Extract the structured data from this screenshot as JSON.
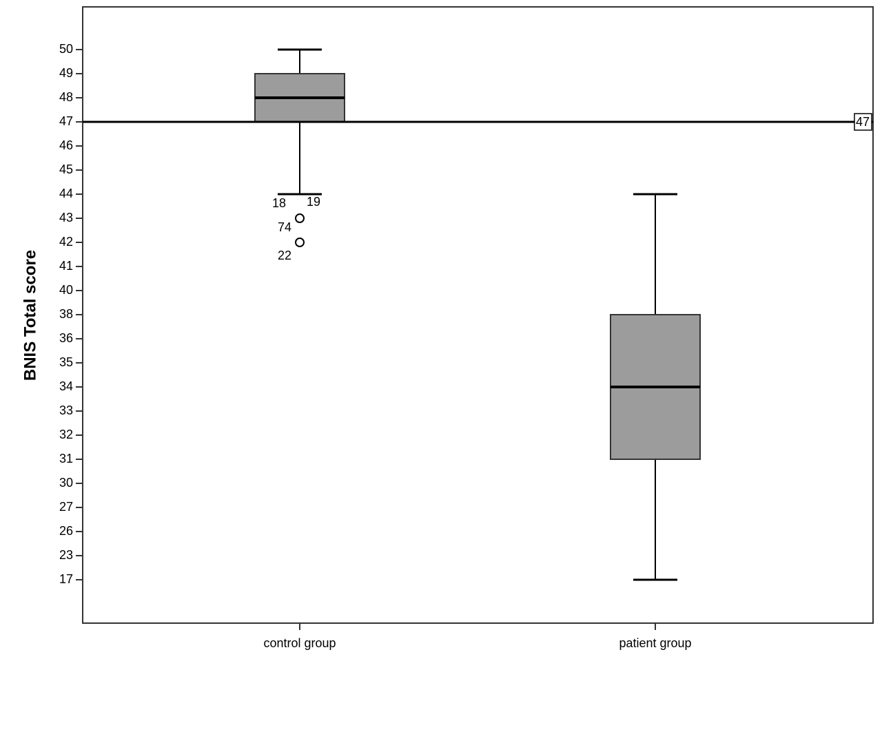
{
  "chart_data": {
    "type": "box",
    "y_label": "BNIS Total score",
    "categories": [
      "control group",
      "patient group"
    ],
    "boxes": [
      {
        "min": 44,
        "q1": 47,
        "median": 48,
        "q3": 49,
        "max": 50,
        "outliers": [
          {
            "value": 44,
            "label": "18"
          },
          {
            "value": 44,
            "label": "19"
          },
          {
            "value": 43,
            "label": "74"
          },
          {
            "value": 42,
            "label": "22"
          }
        ]
      },
      {
        "min": 17,
        "q1": 31,
        "median": 34,
        "q3": 38,
        "max": 44,
        "outliers": []
      }
    ],
    "color": "#9c9c9c",
    "reference_line": {
      "value": 47,
      "label": "47"
    },
    "yticks": [
      17,
      23,
      26,
      27,
      30,
      31,
      32,
      33,
      34,
      35,
      36,
      38,
      40,
      41,
      42,
      43,
      44,
      45,
      46,
      47,
      48,
      49,
      50
    ]
  }
}
